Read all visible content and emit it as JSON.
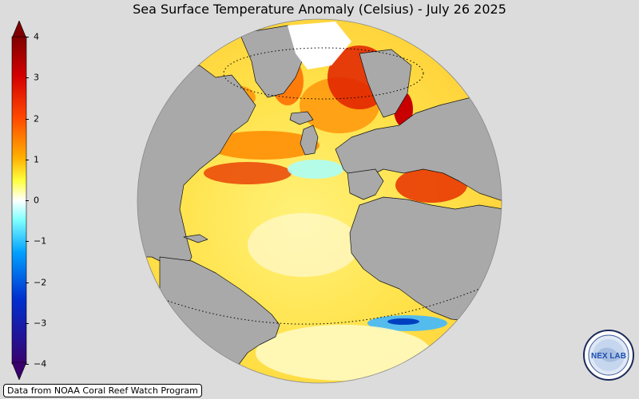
{
  "title": "Sea Surface Temperature Anomaly (Celsius) - July 26 2025",
  "credit": "Data from NOAA Coral Reef Watch Program",
  "logo_text": "NEX LAB",
  "colorbar": {
    "ticks": [
      "4",
      "3",
      "2",
      "1",
      "0",
      "−1",
      "−2",
      "−3",
      "−4"
    ],
    "range": [
      -4,
      4
    ],
    "colormap": "jet-like: dark purple (−4) → blue → cyan → white (0) → yellow → orange → red → dark red (4)"
  },
  "map": {
    "projection": "orthographic",
    "center_lon": -30,
    "center_lat": 20,
    "land_color": "#a9a9a9",
    "background_color": "#dcdcdc"
  }
}
